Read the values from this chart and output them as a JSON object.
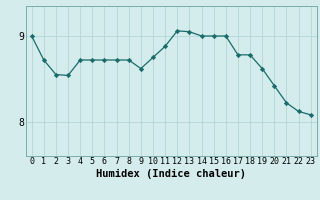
{
  "x": [
    0,
    1,
    2,
    3,
    4,
    5,
    6,
    7,
    8,
    9,
    10,
    11,
    12,
    13,
    14,
    15,
    16,
    17,
    18,
    19,
    20,
    21,
    22,
    23
  ],
  "y": [
    9.0,
    8.72,
    8.55,
    8.54,
    8.72,
    8.72,
    8.72,
    8.72,
    8.72,
    8.62,
    8.75,
    8.88,
    9.06,
    9.05,
    9.0,
    9.0,
    9.0,
    8.78,
    8.78,
    8.62,
    8.42,
    8.22,
    8.12,
    8.08
  ],
  "xlabel": "Humidex (Indice chaleur)",
  "bg_color": "#d4ecec",
  "line_color": "#1a6b6b",
  "grid_color": "#aed0d0",
  "yticks": [
    8,
    9
  ],
  "ylim": [
    7.6,
    9.35
  ],
  "xlim": [
    -0.5,
    23.5
  ],
  "tick_fontsize": 6.0,
  "xlabel_fontsize": 7.5
}
